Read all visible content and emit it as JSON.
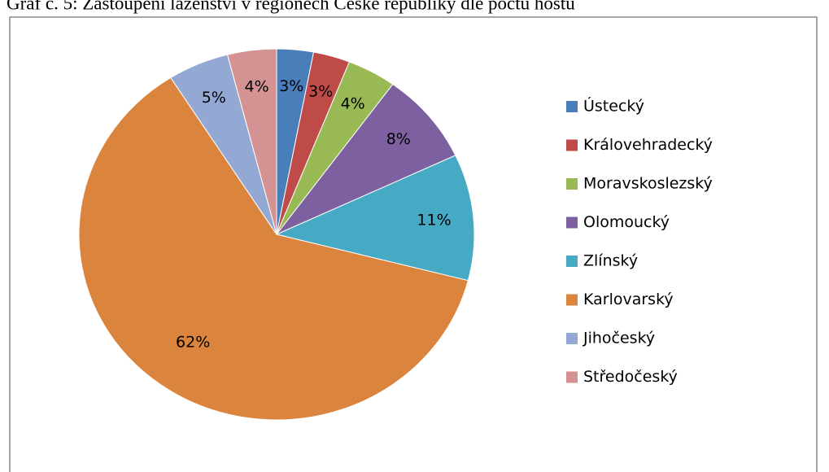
{
  "chart_data": {
    "type": "pie",
    "title": "Graf č. 5: Zastoupení lázeňství v regionech České republiky dle počtu hostů",
    "categories": [
      "Ústecký",
      "Královehradecký",
      "Moravskoslezský",
      "Olomoucký",
      "Zlínský",
      "Karlovarský",
      "Jihočeský",
      "Středočeský"
    ],
    "values": [
      3,
      3,
      4,
      8,
      11,
      62,
      5,
      4
    ],
    "value_labels": [
      "3%",
      "3%",
      "4%",
      "8%",
      "11%",
      "62%",
      "5%",
      "4%"
    ],
    "colors": [
      "#4a7ebb",
      "#be4b48",
      "#98b954",
      "#7d60a0",
      "#46aac5",
      "#db843d",
      "#93a9d4",
      "#d49392"
    ],
    "legend": "right"
  }
}
